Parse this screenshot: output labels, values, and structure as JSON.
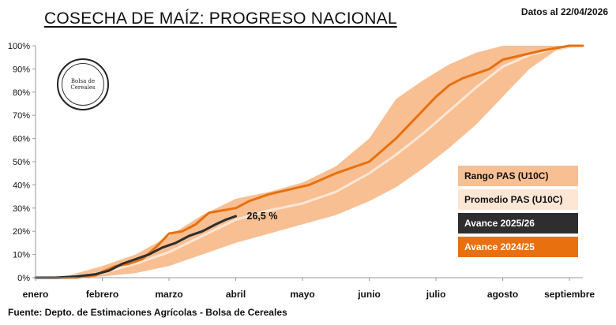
{
  "header": {
    "title": "COSECHA DE MAÍZ: PROGRESO NACIONAL",
    "datestamp": "Datos al 22/04/2026"
  },
  "footer": {
    "source": "Fuente: Depto. de Estimaciones Agrícolas - Bolsa de Cereales"
  },
  "logo": {
    "text": "Bolsa de Cereales"
  },
  "colors": {
    "range": "#f8bf93",
    "average": "#fde6d4",
    "current": "#2e2e2e",
    "previous": "#e8700f"
  },
  "chart_data": {
    "type": "area",
    "title": "COSECHA DE MAÍZ: PROGRESO NACIONAL",
    "xlabel": "",
    "ylabel": "",
    "x_unit": "month",
    "xlim": [
      0,
      8.2
    ],
    "ylim": [
      0,
      100
    ],
    "categories": [
      "enero",
      "febrero",
      "marzo",
      "abril",
      "mayo",
      "junio",
      "julio",
      "agosto",
      "septiembre"
    ],
    "yticks": [
      "0%",
      "10%",
      "20%",
      "30%",
      "40%",
      "50%",
      "60%",
      "70%",
      "80%",
      "90%",
      "100%"
    ],
    "grid": false,
    "legend_position": "right",
    "series": [
      {
        "name": "Rango PAS (U10C)",
        "kind": "band",
        "x": [
          0,
          0.5,
          1,
          1.5,
          2,
          2.5,
          3,
          3.5,
          4,
          4.5,
          5,
          5.4,
          5.8,
          6.2,
          6.6,
          7,
          7.4,
          7.8,
          8.2
        ],
        "lower": [
          0,
          0,
          0.5,
          2,
          5,
          10,
          15,
          19,
          23,
          27,
          33,
          39,
          47,
          56,
          66,
          78,
          90,
          98,
          100
        ],
        "upper": [
          0,
          1,
          5,
          10,
          18,
          27,
          34,
          37,
          41,
          48,
          60,
          77,
          85,
          92,
          97,
          100,
          100,
          100,
          100
        ]
      },
      {
        "name": "Promedio PAS (U10C)",
        "kind": "line",
        "x": [
          0,
          0.5,
          1,
          1.5,
          2,
          2.5,
          3,
          3.5,
          4,
          4.5,
          5,
          5.4,
          5.8,
          6.2,
          6.6,
          7,
          7.4,
          7.8,
          8.2
        ],
        "y": [
          0,
          0.5,
          2,
          6,
          11,
          18,
          25,
          29,
          32,
          37,
          45,
          53,
          62,
          72,
          82,
          91,
          96,
          99,
          100
        ]
      },
      {
        "name": "Avance 2025/26",
        "kind": "line",
        "x": [
          0,
          0.3,
          0.6,
          0.9,
          1.1,
          1.3,
          1.5,
          1.7,
          1.9,
          2.1,
          2.3,
          2.5,
          2.7,
          2.85,
          3.0
        ],
        "y": [
          0,
          0,
          0.5,
          1.5,
          3,
          6,
          8,
          10,
          13,
          15,
          18,
          20,
          23,
          25,
          26.5
        ]
      },
      {
        "name": "Avance 2024/25",
        "kind": "line",
        "x": [
          0,
          0.6,
          0.9,
          1.0,
          1.2,
          1.4,
          1.6,
          1.8,
          2.0,
          2.2,
          2.4,
          2.6,
          2.8,
          3.0,
          3.2,
          3.5,
          3.8,
          4.1,
          4.5,
          5.0,
          5.4,
          5.8,
          6.0,
          6.2,
          6.4,
          6.6,
          6.8,
          7.0,
          7.3,
          7.6,
          8.0,
          8.2
        ],
        "y": [
          0,
          0,
          1,
          2.5,
          5,
          6,
          8,
          13,
          19,
          20,
          23,
          28,
          29,
          30,
          33,
          36,
          38,
          40,
          45,
          50,
          60,
          72,
          78,
          83,
          86,
          88,
          90,
          94,
          96,
          98,
          100,
          100
        ]
      }
    ],
    "annotations": [
      {
        "text": "26,5 %",
        "x": 3.0,
        "y": 26.5,
        "series": "Avance 2025/26"
      }
    ]
  }
}
